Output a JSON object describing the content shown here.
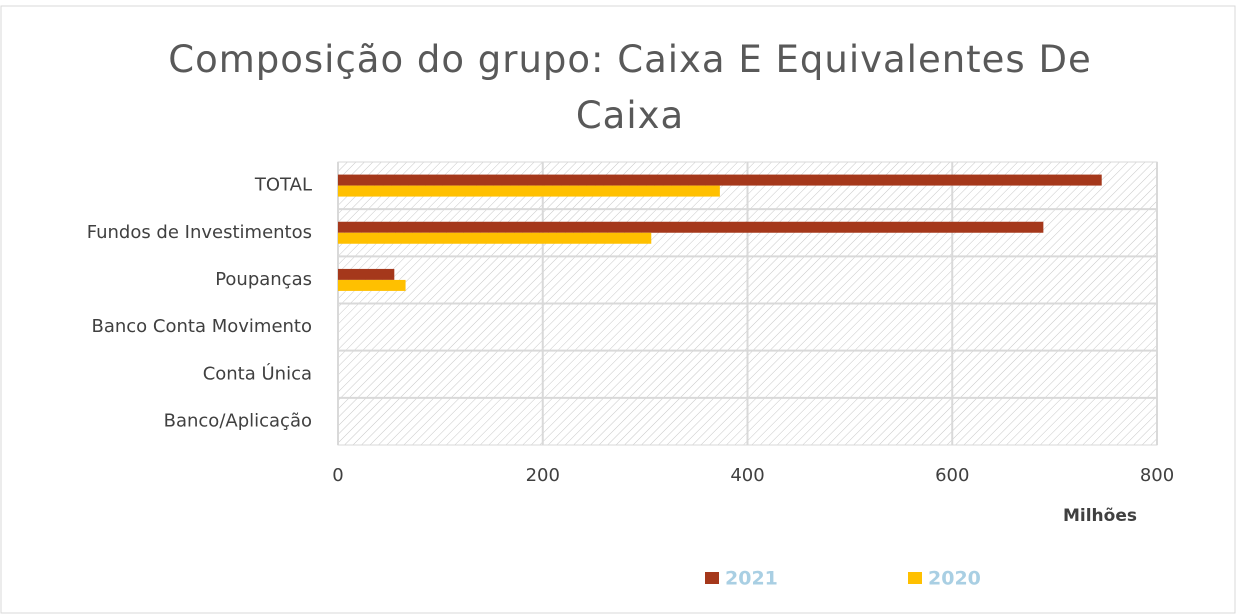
{
  "chart_data": {
    "type": "hbar",
    "title": "Composição do grupo: Caixa E Equivalentes De Caixa",
    "x_label": "Milhões",
    "categories": [
      "TOTAL",
      "Fundos de Investimentos",
      "Poupanças",
      "Banco Conta Movimento",
      "Conta Única",
      "Banco/Aplicação"
    ],
    "series": [
      {
        "name": "2021",
        "color": "#a5381b",
        "values": [
          746,
          689,
          55,
          0,
          0,
          0
        ]
      },
      {
        "name": "2020",
        "color": "#ffc000",
        "values": [
          373,
          306,
          66,
          0,
          0,
          0
        ]
      }
    ],
    "xlim": [
      0,
      800
    ],
    "xticks": [
      0,
      200,
      400,
      600,
      800
    ],
    "grid": true,
    "legend": "bottom"
  }
}
